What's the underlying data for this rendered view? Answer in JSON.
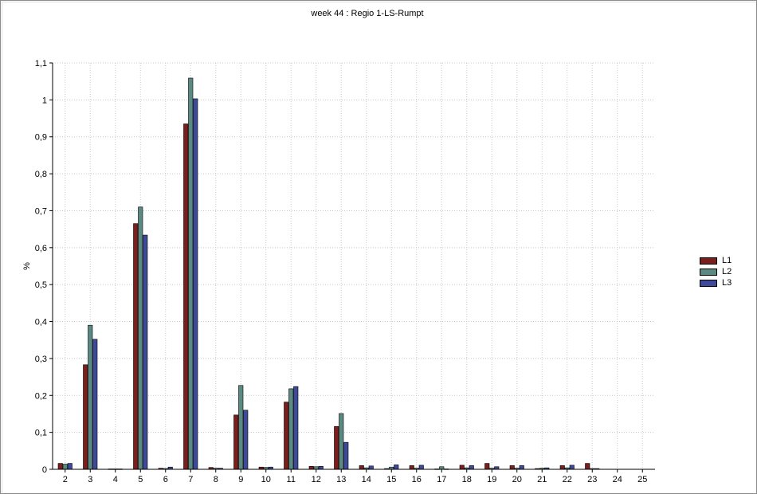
{
  "chart_data": {
    "type": "bar",
    "title": "week 44 :  Regio 1-LS-Rumpt",
    "xlabel": "",
    "ylabel": "%",
    "ylim": [
      0,
      1.1
    ],
    "yticks": [
      "0",
      "0,1",
      "0,2",
      "0,3",
      "0,4",
      "0,5",
      "0,6",
      "0,7",
      "0,8",
      "0,9",
      "1",
      "1,1"
    ],
    "categories": [
      "2",
      "3",
      "4",
      "5",
      "6",
      "7",
      "8",
      "9",
      "10",
      "11",
      "12",
      "13",
      "14",
      "15",
      "16",
      "17",
      "18",
      "19",
      "20",
      "21",
      "22",
      "23",
      "24",
      "25"
    ],
    "grid": true,
    "legend_position": "right",
    "series": [
      {
        "name": "L1",
        "color": "#7a1e1e",
        "values": [
          0.016,
          0.283,
          0.001,
          0.665,
          0.003,
          0.935,
          0.005,
          0.147,
          0.006,
          0.182,
          0.008,
          0.116,
          0.01,
          0.002,
          0.01,
          0.001,
          0.011,
          0.016,
          0.01,
          0.002,
          0.01,
          0.016,
          0,
          0
        ]
      },
      {
        "name": "L2",
        "color": "#5a8a82",
        "values": [
          0.014,
          0.39,
          0.001,
          0.71,
          0.002,
          1.059,
          0.003,
          0.227,
          0.005,
          0.218,
          0.007,
          0.151,
          0.004,
          0.006,
          0.003,
          0.007,
          0.004,
          0.003,
          0.003,
          0.003,
          0.004,
          0.002,
          0,
          0
        ]
      },
      {
        "name": "L3",
        "color": "#3e4a98",
        "values": [
          0.016,
          0.352,
          0.001,
          0.634,
          0.006,
          1.003,
          0.003,
          0.16,
          0.006,
          0.224,
          0.008,
          0.073,
          0.009,
          0.012,
          0.011,
          0.001,
          0.01,
          0.007,
          0.01,
          0.004,
          0.011,
          0.002,
          0,
          0
        ]
      }
    ]
  }
}
